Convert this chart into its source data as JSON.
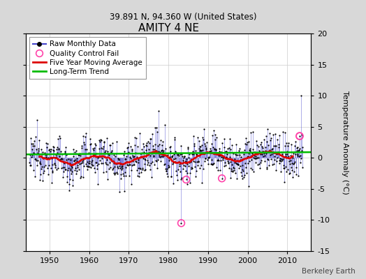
{
  "title": "AMITY 4 NE",
  "subtitle": "39.891 N, 94.360 W (United States)",
  "ylabel": "Temperature Anomaly (°C)",
  "watermark": "Berkeley Earth",
  "xlim": [
    1944,
    2016
  ],
  "ylim": [
    -15,
    20
  ],
  "yticks_right": [
    -15,
    -10,
    -5,
    0,
    5,
    10,
    15,
    20
  ],
  "xticks": [
    1950,
    1960,
    1970,
    1980,
    1990,
    2000,
    2010
  ],
  "background_color": "#d8d8d8",
  "plot_bg_color": "#ffffff",
  "raw_line_color": "#4444cc",
  "raw_dot_color": "#000000",
  "moving_avg_color": "#dd0000",
  "trend_color": "#00bb00",
  "qc_fail_color": "#ff44aa",
  "seed": 12345,
  "start_year": 1945.0,
  "end_year": 2013.9,
  "qc_fail_points": [
    [
      1983.25,
      -10.5
    ],
    [
      1984.5,
      -3.5
    ],
    [
      1993.5,
      -3.3
    ],
    [
      2013.1,
      3.5
    ]
  ]
}
